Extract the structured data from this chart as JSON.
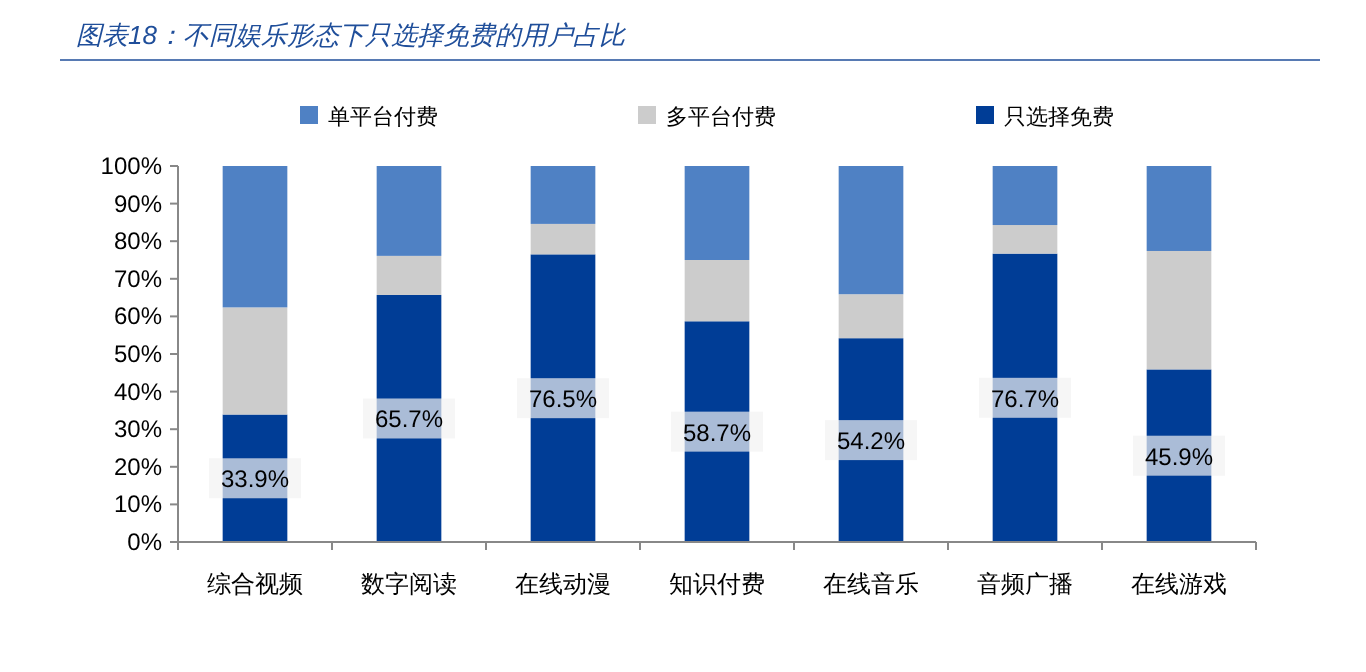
{
  "chart_data": {
    "type": "bar",
    "stacked": true,
    "title": "图表18：不同娱乐形态下只选择免费的用户占比",
    "categories": [
      "综合视频",
      "数字阅读",
      "在线动漫",
      "知识付费",
      "在线音乐",
      "音频广播",
      "在线游戏"
    ],
    "series": [
      {
        "name": "只选择免费",
        "color": "#003d96",
        "values": [
          33.9,
          65.7,
          76.5,
          58.7,
          54.2,
          76.7,
          45.9
        ],
        "value_labels": [
          "33.9%",
          "65.7%",
          "76.5%",
          "58.7%",
          "54.2%",
          "76.7%",
          "45.9%"
        ]
      },
      {
        "name": "多平台付费",
        "color": "#cccccc",
        "values": [
          28.5,
          10.4,
          8.1,
          16.3,
          11.7,
          7.6,
          31.5
        ]
      },
      {
        "name": "单平台付费",
        "color": "#4f81c4",
        "values": [
          37.6,
          23.9,
          15.4,
          25.0,
          34.1,
          15.7,
          22.6
        ]
      }
    ],
    "ylim": [
      0,
      100
    ],
    "yticks": [
      {
        "value": 0,
        "label": "0%"
      },
      {
        "value": 10,
        "label": "10%"
      },
      {
        "value": 20,
        "label": "20%"
      },
      {
        "value": 30,
        "label": "30%"
      },
      {
        "value": 40,
        "label": "40%"
      },
      {
        "value": 50,
        "label": "50%"
      },
      {
        "value": 60,
        "label": "60%"
      },
      {
        "value": 70,
        "label": "70%"
      },
      {
        "value": 80,
        "label": "80%"
      },
      {
        "value": 90,
        "label": "90%"
      },
      {
        "value": 100,
        "label": "100%"
      }
    ],
    "legend": "top"
  }
}
